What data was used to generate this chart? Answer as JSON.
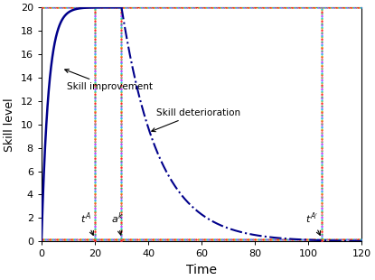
{
  "xlabel": "Time",
  "ylabel": "Skill level",
  "xlim": [
    0,
    120
  ],
  "ylim": [
    0,
    20
  ],
  "yticks": [
    0,
    2,
    4,
    6,
    8,
    10,
    12,
    14,
    16,
    18,
    20
  ],
  "xticks": [
    0,
    20,
    40,
    60,
    80,
    100,
    120
  ],
  "t_A": 20,
  "a_k": 30,
  "t_A_prime": 105,
  "skill_max": 20,
  "skill_min": 0.2,
  "improvement_rate": 0.38,
  "deterioration_rate": 0.072,
  "line_color": "#00008B",
  "bg_color": "#ffffff",
  "annotation_improvement": "Skill improvement",
  "annotation_deterioration": "Skill deterioration",
  "figsize": [
    4.15,
    3.1
  ],
  "dpi": 100,
  "multicolors": [
    "#FF6688",
    "#FF0000",
    "#00CCCC",
    "#CCCC00",
    "#FF88FF",
    "#4488FF",
    "#00CC44"
  ],
  "hline_colors": [
    "#FF6688",
    "#FF0000",
    "#00CCCC",
    "#CCCC00",
    "#FF88FF",
    "#4488FF",
    "#00CC44",
    "#FF8800"
  ]
}
